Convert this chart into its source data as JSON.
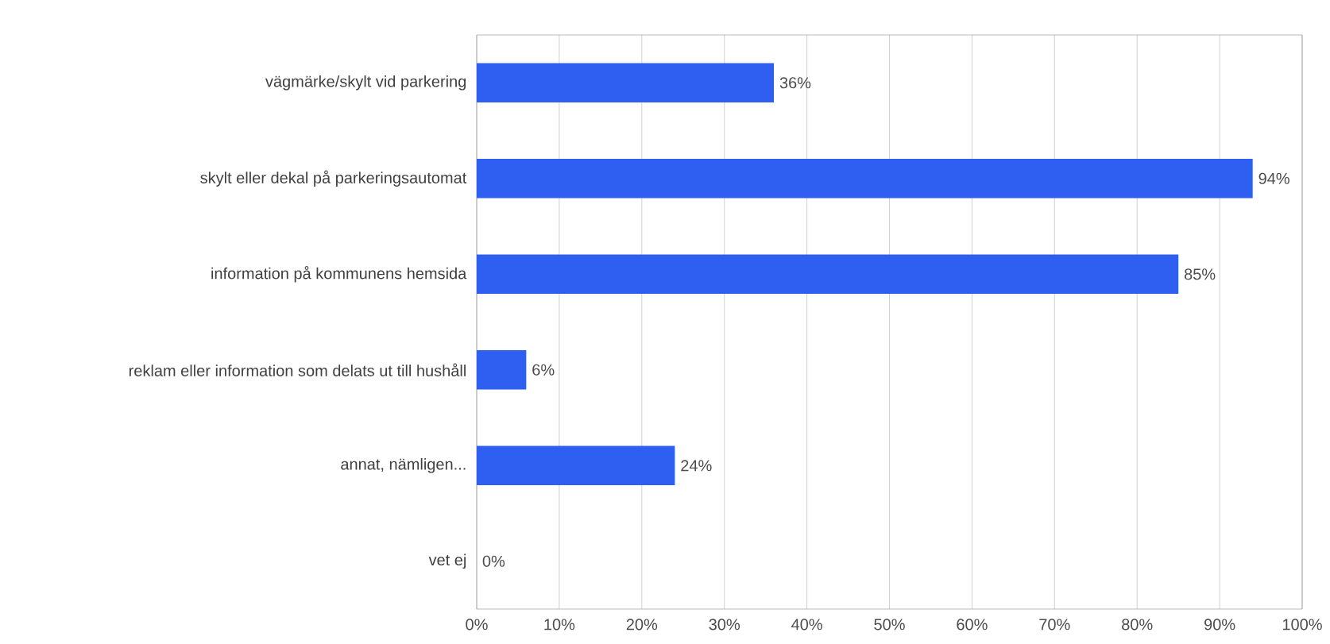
{
  "chart_data": {
    "type": "bar",
    "orientation": "horizontal",
    "categories": [
      "vägmärke/skylt vid parkering",
      "skylt eller dekal på parkeringsautomat",
      "information på kommunens hemsida",
      "reklam eller information som delats ut till hushåll",
      "annat, nämligen...",
      "vet ej"
    ],
    "values": [
      36,
      94,
      85,
      6,
      24,
      0
    ],
    "value_labels": [
      "36%",
      "94%",
      "85%",
      "6%",
      "24%",
      "0%"
    ],
    "color": "#2f5ff0",
    "xlim": [
      0,
      100
    ],
    "xticks": [
      {
        "value": 0,
        "label": "0%"
      },
      {
        "value": 10,
        "label": "10%"
      },
      {
        "value": 20,
        "label": "20%"
      },
      {
        "value": 30,
        "label": "30%"
      },
      {
        "value": 40,
        "label": "40%"
      },
      {
        "value": 50,
        "label": "50%"
      },
      {
        "value": 60,
        "label": "60%"
      },
      {
        "value": 70,
        "label": "70%"
      },
      {
        "value": 80,
        "label": "80%"
      },
      {
        "value": 90,
        "label": "90%"
      },
      {
        "value": 100,
        "label": "100%"
      }
    ],
    "grid": "x"
  }
}
